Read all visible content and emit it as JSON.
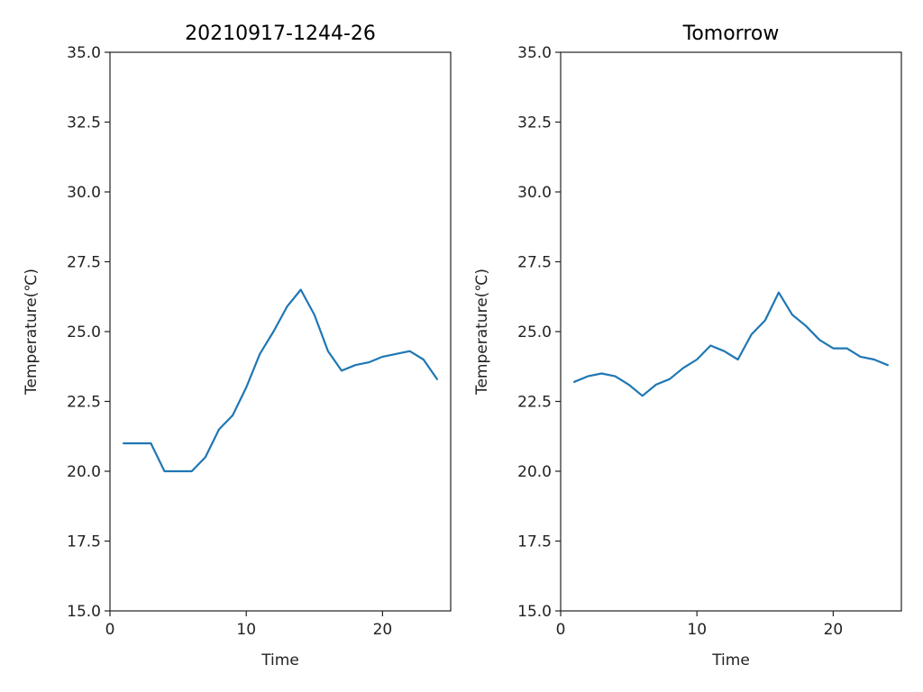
{
  "chart_data": [
    {
      "type": "line",
      "title": "20210917-1244-26",
      "xlabel": "Time",
      "ylabel": "Temperature(℃)",
      "xlim": [
        0,
        25
      ],
      "ylim": [
        15.0,
        35.0
      ],
      "xticks": [
        "0",
        "10",
        "20"
      ],
      "yticks": [
        "15.0",
        "17.5",
        "20.0",
        "22.5",
        "25.0",
        "27.5",
        "30.0",
        "32.5",
        "35.0"
      ],
      "grid": false,
      "series": [
        {
          "color": "#1f77b4",
          "x": [
            1,
            2,
            3,
            4,
            5,
            6,
            7,
            8,
            9,
            10,
            11,
            12,
            13,
            14,
            15,
            16,
            17,
            18,
            19,
            20,
            21,
            22,
            23,
            24
          ],
          "y": [
            21.0,
            21.0,
            21.0,
            20.0,
            20.0,
            20.0,
            20.5,
            21.5,
            22.0,
            23.0,
            24.2,
            25.0,
            25.9,
            26.5,
            25.6,
            24.3,
            23.6,
            23.8,
            23.9,
            24.1,
            24.2,
            24.3,
            24.0,
            23.3
          ]
        }
      ]
    },
    {
      "type": "line",
      "title": "Tomorrow",
      "xlabel": "Time",
      "ylabel": "Temperature(℃)",
      "xlim": [
        0,
        25
      ],
      "ylim": [
        15.0,
        35.0
      ],
      "xticks": [
        "0",
        "10",
        "20"
      ],
      "yticks": [
        "15.0",
        "17.5",
        "20.0",
        "22.5",
        "25.0",
        "27.5",
        "30.0",
        "32.5",
        "35.0"
      ],
      "grid": false,
      "series": [
        {
          "color": "#1f77b4",
          "x": [
            1,
            2,
            3,
            4,
            5,
            6,
            7,
            8,
            9,
            10,
            11,
            12,
            13,
            14,
            15,
            16,
            17,
            18,
            19,
            20,
            21,
            22,
            23,
            24
          ],
          "y": [
            23.2,
            23.4,
            23.5,
            23.4,
            23.1,
            22.7,
            23.1,
            23.3,
            23.7,
            24.0,
            24.5,
            24.3,
            24.0,
            24.9,
            25.4,
            26.4,
            25.6,
            25.2,
            24.7,
            24.4,
            24.4,
            24.1,
            24.0,
            23.8
          ]
        }
      ]
    }
  ]
}
